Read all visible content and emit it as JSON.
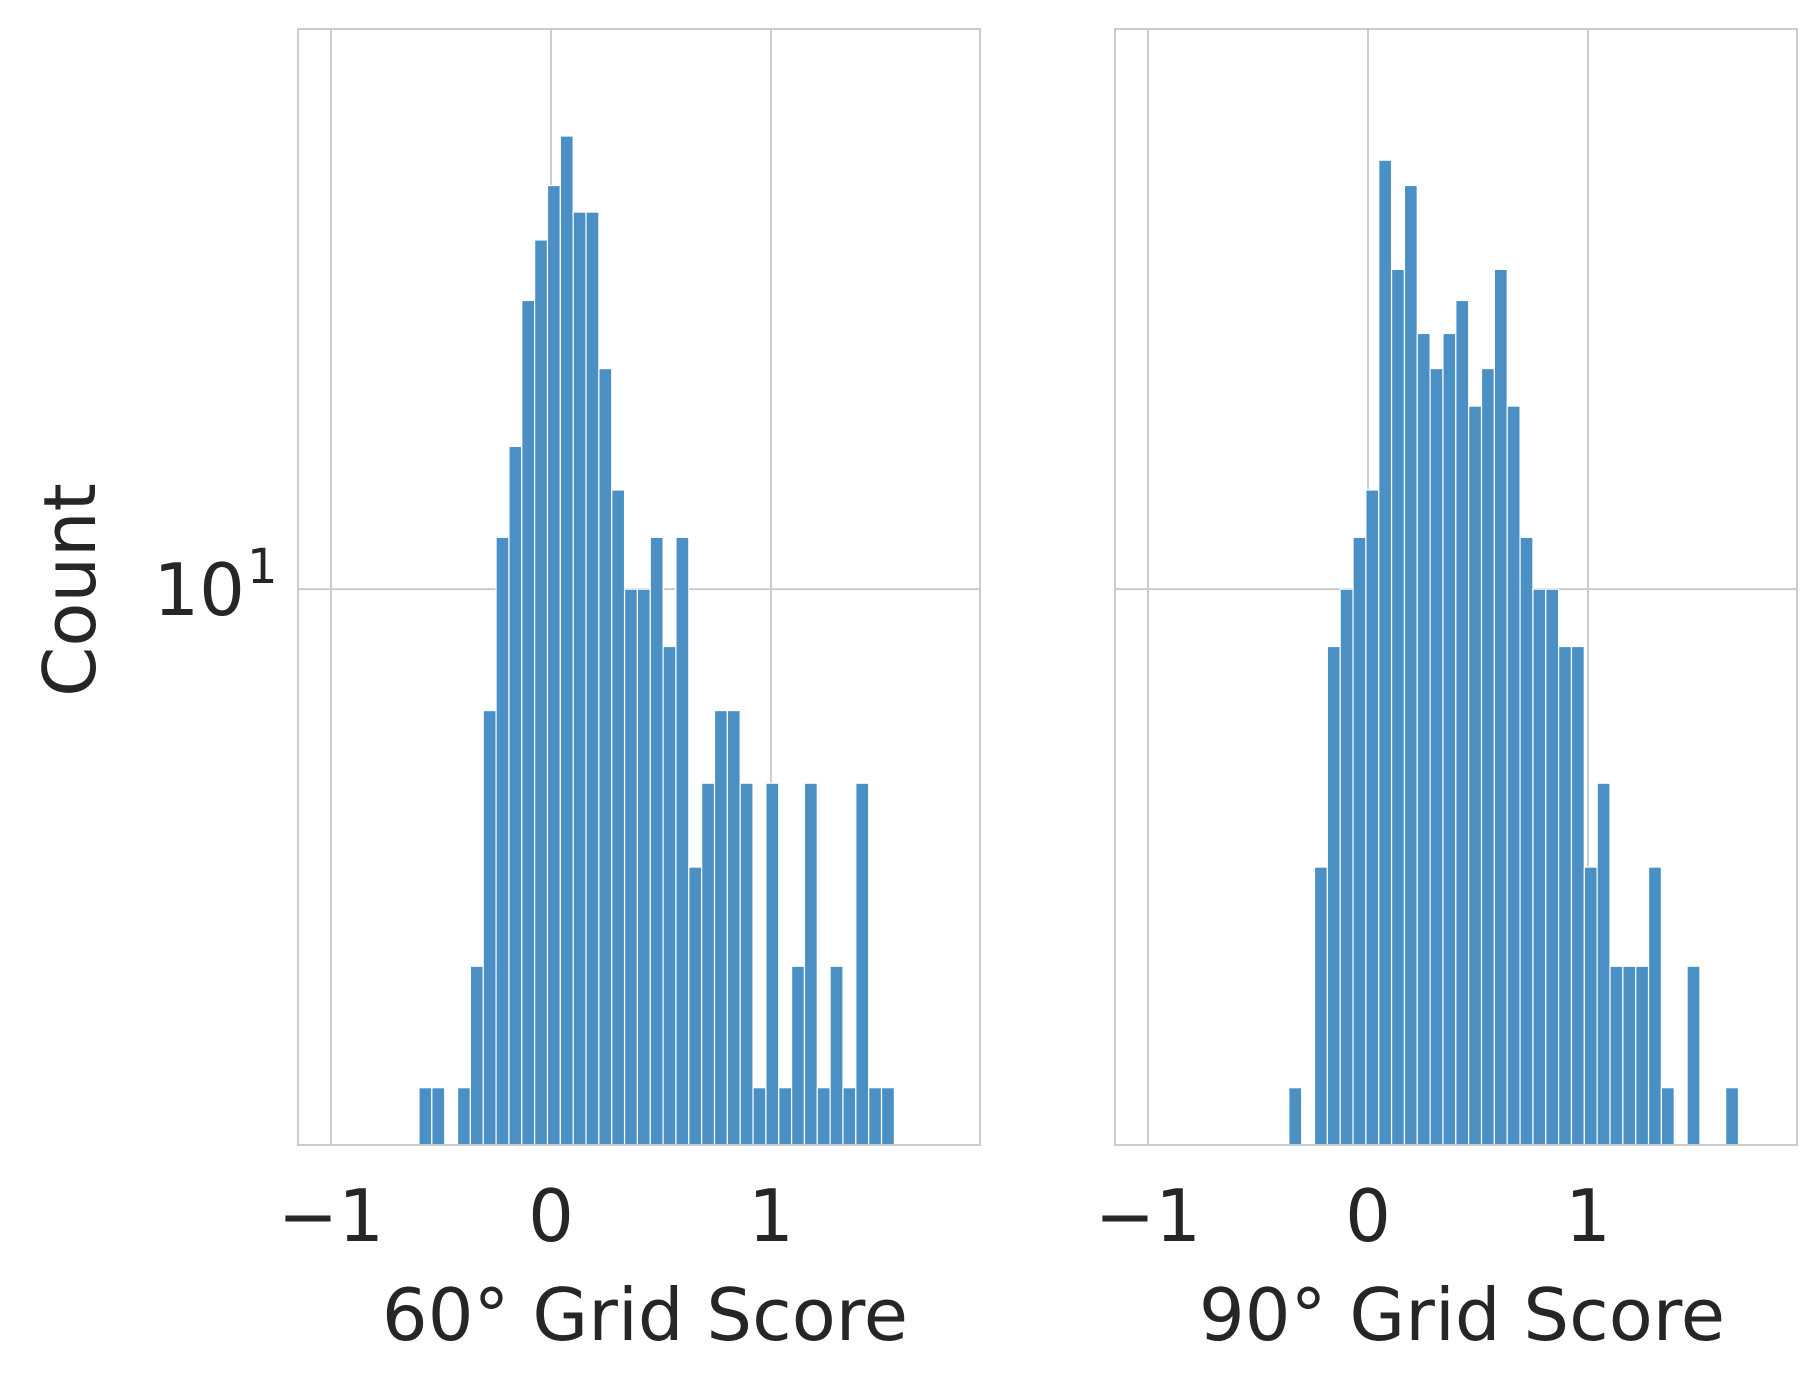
{
  "figure": {
    "ylabel": "Count",
    "y_tick_base": "10",
    "y_tick_exp": "1",
    "colors": {
      "bar": "#4a90c4",
      "grid": "#cccccc",
      "frame": "#cccccc",
      "text": "#262626"
    }
  },
  "chart_data": [
    {
      "type": "bar",
      "xlabel": "60° Grid Score",
      "ylabel": "Count",
      "yscale": "log",
      "xlim": [
        -1.15,
        1.95
      ],
      "ylim": [
        3.6,
        28
      ],
      "grid": true,
      "x_ticks": [
        -1,
        0,
        1
      ],
      "x_tick_labels": [
        "−1",
        "0",
        "1"
      ],
      "y_ticks": [
        10
      ],
      "bin_width": 0.0584,
      "bin_start": -0.6,
      "counts": [
        4,
        4,
        0,
        4,
        5,
        8,
        11,
        13,
        17,
        19,
        21,
        23,
        20,
        20,
        15,
        12,
        10,
        10,
        11,
        9,
        11,
        6,
        7,
        8,
        8,
        7,
        4,
        7,
        4,
        5,
        7,
        4,
        5,
        4,
        7,
        4,
        4
      ]
    },
    {
      "type": "bar",
      "xlabel": "90° Grid Score",
      "yscale": "log",
      "xlim": [
        -1.15,
        1.95
      ],
      "ylim": [
        3.6,
        28
      ],
      "grid": true,
      "x_ticks": [
        -1,
        0,
        1
      ],
      "x_tick_labels": [
        "−1",
        "0",
        "1"
      ],
      "y_ticks": [
        10
      ],
      "bin_width": 0.0584,
      "bin_start": -0.36,
      "counts": [
        4,
        0,
        6,
        9,
        10,
        11,
        12,
        22,
        18,
        21,
        16,
        15,
        16,
        17,
        14,
        15,
        18,
        14,
        11,
        10,
        10,
        9,
        9,
        6,
        7,
        5,
        5,
        5,
        6,
        4,
        0,
        5,
        0,
        0,
        4
      ]
    }
  ]
}
